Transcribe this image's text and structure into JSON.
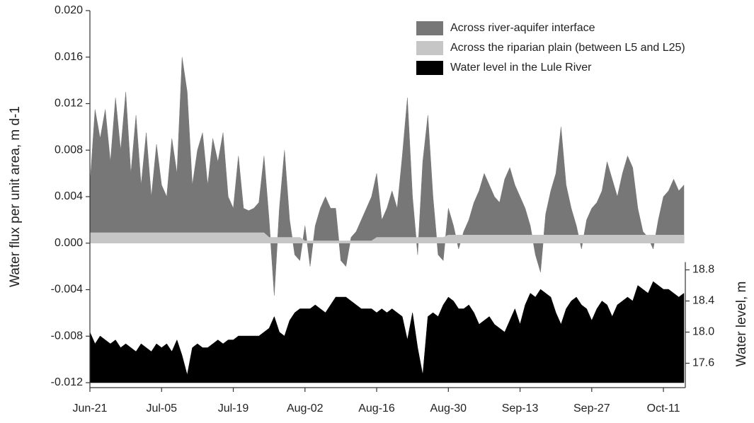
{
  "chart_data": {
    "type": "area",
    "y_label": "Water flux per unit area, m d-1",
    "y2_label": "Water level, m",
    "x": [
      "Jun-21",
      "Jun-22",
      "Jun-23",
      "Jun-24",
      "Jun-25",
      "Jun-26",
      "Jun-27",
      "Jun-28",
      "Jun-29",
      "Jun-30",
      "Jul-01",
      "Jul-02",
      "Jul-03",
      "Jul-04",
      "Jul-05",
      "Jul-06",
      "Jul-07",
      "Jul-08",
      "Jul-09",
      "Jul-10",
      "Jul-11",
      "Jul-12",
      "Jul-13",
      "Jul-14",
      "Jul-15",
      "Jul-16",
      "Jul-17",
      "Jul-18",
      "Jul-19",
      "Jul-20",
      "Jul-21",
      "Jul-22",
      "Jul-23",
      "Jul-24",
      "Jul-25",
      "Jul-26",
      "Jul-27",
      "Jul-28",
      "Jul-29",
      "Jul-30",
      "Jul-31",
      "Aug-01",
      "Aug-02",
      "Aug-03",
      "Aug-04",
      "Aug-05",
      "Aug-06",
      "Aug-07",
      "Aug-08",
      "Aug-09",
      "Aug-10",
      "Aug-11",
      "Aug-12",
      "Aug-13",
      "Aug-14",
      "Aug-15",
      "Aug-16",
      "Aug-17",
      "Aug-18",
      "Aug-19",
      "Aug-20",
      "Aug-21",
      "Aug-22",
      "Aug-23",
      "Aug-24",
      "Aug-25",
      "Aug-26",
      "Aug-27",
      "Aug-28",
      "Aug-29",
      "Aug-30",
      "Aug-31",
      "Sep-01",
      "Sep-02",
      "Sep-03",
      "Sep-04",
      "Sep-05",
      "Sep-06",
      "Sep-07",
      "Sep-08",
      "Sep-09",
      "Sep-10",
      "Sep-11",
      "Sep-12",
      "Sep-13",
      "Sep-14",
      "Sep-15",
      "Sep-16",
      "Sep-17",
      "Sep-18",
      "Sep-19",
      "Sep-20",
      "Sep-21",
      "Sep-22",
      "Sep-23",
      "Sep-24",
      "Sep-25",
      "Sep-26",
      "Sep-27",
      "Sep-28",
      "Sep-29",
      "Sep-30",
      "Oct-01",
      "Oct-02",
      "Oct-03",
      "Oct-04",
      "Oct-05",
      "Oct-06",
      "Oct-07",
      "Oct-08",
      "Oct-09",
      "Oct-10",
      "Oct-11",
      "Oct-12",
      "Oct-13",
      "Oct-14",
      "Oct-15"
    ],
    "xticks": [
      "Jun-21",
      "Jul-05",
      "Jul-19",
      "Aug-02",
      "Aug-16",
      "Aug-30",
      "Sep-13",
      "Sep-27",
      "Oct-11"
    ],
    "ylim": [
      -0.012,
      0.02
    ],
    "yticks": [
      {
        "value": 0.02,
        "label": "0.020"
      },
      0.016,
      0.012,
      0.008,
      0.004,
      {
        "value": 0,
        "label": "0.000"
      },
      -0.004,
      -0.008,
      -0.012
    ],
    "y2lim": [
      17.35,
      18.9
    ],
    "y2ticks": [
      17.6,
      {
        "value": 18,
        "label": "18.0"
      },
      18.4,
      18.8
    ],
    "legend": "top-right",
    "series": [
      {
        "name": "Across river-aquifer interface",
        "color": "#777777",
        "values": [
          0.005,
          0.0115,
          0.009,
          0.0115,
          0.007,
          0.0125,
          0.008,
          0.013,
          0.006,
          0.011,
          0.005,
          0.0095,
          0.004,
          0.0085,
          0.005,
          0.004,
          0.009,
          0.006,
          0.016,
          0.013,
          0.005,
          0.008,
          0.0095,
          0.005,
          0.009,
          0.007,
          0.0095,
          0.004,
          0.003,
          0.0075,
          0.003,
          0.0028,
          0.003,
          0.0035,
          0.0075,
          0.002,
          -0.0045,
          0.003,
          0.008,
          0.002,
          -0.001,
          -0.0015,
          0.0015,
          -0.002,
          0.0015,
          0.003,
          0.004,
          0.003,
          0.003,
          -0.0015,
          -0.002,
          0.0005,
          0.001,
          0.002,
          0.003,
          0.004,
          0.006,
          0.002,
          0.003,
          0.0045,
          0.003,
          0.0075,
          0.0125,
          0.004,
          -0.001,
          0.007,
          0.011,
          0.004,
          -0.001,
          -0.0015,
          0.003,
          0.0015,
          -0.0005,
          0.001,
          0.002,
          0.0035,
          0.0045,
          0.006,
          0.005,
          0.004,
          0.0035,
          0.0055,
          0.0065,
          0.005,
          0.004,
          0.003,
          0.0015,
          -0.001,
          -0.0025,
          0.0025,
          0.0045,
          0.006,
          0.01,
          0.005,
          0.003,
          0.0015,
          -0.0005,
          0.002,
          0.003,
          0.0035,
          0.0045,
          0.007,
          0.0055,
          0.004,
          0.006,
          0.0075,
          0.0065,
          0.003,
          0.001,
          0.0005,
          -0.0005,
          0.002,
          0.004,
          0.0045,
          0.0055,
          0.0045,
          0.005
        ]
      },
      {
        "name": "Across the riparian plain (between L5 and L25)",
        "color": "#c6c6c6",
        "values": [
          0.0009,
          0.0009,
          0.0009,
          0.0009,
          0.0009,
          0.0009,
          0.0009,
          0.0009,
          0.0009,
          0.0009,
          0.0009,
          0.0009,
          0.0009,
          0.0009,
          0.0009,
          0.0009,
          0.0009,
          0.0009,
          0.0009,
          0.0009,
          0.0009,
          0.0009,
          0.0009,
          0.0009,
          0.0009,
          0.0009,
          0.0009,
          0.0009,
          0.0009,
          0.0009,
          0.0009,
          0.0009,
          0.0009,
          0.0009,
          0.0009,
          0.0005,
          0.0005,
          0.0005,
          0.0005,
          0.0005,
          0.0005,
          0.0005,
          0.0002,
          0.0002,
          0.0002,
          0.0002,
          0.0002,
          0.0002,
          0.0002,
          0.0002,
          0.0002,
          0.0002,
          0.0002,
          0.0002,
          0.0002,
          0.0002,
          0.0005,
          0.0005,
          0.0005,
          0.0005,
          0.0005,
          0.0005,
          0.0005,
          0.0005,
          0.0005,
          0.0005,
          0.0005,
          0.0005,
          0.0005,
          0.0005,
          0.0007,
          0.0007,
          0.0007,
          0.0007,
          0.0007,
          0.0007,
          0.0007,
          0.0007,
          0.0007,
          0.0007,
          0.0007,
          0.0007,
          0.0007,
          0.0007,
          0.0007,
          0.0007,
          0.0007,
          0.0007,
          0.0007,
          0.0007,
          0.0007,
          0.0007,
          0.0007,
          0.0007,
          0.0007,
          0.0007,
          0.0007,
          0.0007,
          0.0007,
          0.0007,
          0.0007,
          0.0007,
          0.0007,
          0.0007,
          0.0007,
          0.0007,
          0.0007,
          0.0007,
          0.0007,
          0.0007,
          0.0007,
          0.0007,
          0.0007,
          0.0007,
          0.0007,
          0.0007,
          0.0007
        ]
      },
      {
        "name": "Water level in the Lule River",
        "color": "#000000",
        "axis": "y2",
        "values": [
          18.0,
          17.85,
          17.95,
          17.9,
          17.85,
          17.9,
          17.8,
          17.85,
          17.8,
          17.75,
          17.85,
          17.8,
          17.75,
          17.85,
          17.8,
          17.85,
          17.75,
          17.9,
          17.7,
          17.45,
          17.8,
          17.85,
          17.8,
          17.8,
          17.85,
          17.9,
          17.85,
          17.9,
          17.9,
          17.95,
          17.95,
          17.95,
          17.95,
          17.95,
          18.0,
          18.05,
          18.2,
          18.0,
          17.95,
          18.15,
          18.25,
          18.3,
          18.3,
          18.3,
          18.35,
          18.3,
          18.25,
          18.35,
          18.45,
          18.45,
          18.45,
          18.4,
          18.35,
          18.3,
          18.3,
          18.3,
          18.25,
          18.3,
          18.25,
          18.3,
          18.25,
          18.2,
          17.9,
          18.25,
          17.8,
          17.45,
          18.2,
          18.25,
          18.2,
          18.35,
          18.45,
          18.4,
          18.3,
          18.3,
          18.35,
          18.25,
          18.1,
          18.15,
          18.2,
          18.1,
          18.05,
          18.0,
          18.15,
          18.3,
          18.1,
          18.35,
          18.5,
          18.45,
          18.55,
          18.5,
          18.45,
          18.25,
          18.1,
          18.3,
          18.4,
          18.45,
          18.35,
          18.3,
          18.15,
          18.3,
          18.4,
          18.35,
          18.2,
          18.35,
          18.4,
          18.45,
          18.4,
          18.6,
          18.55,
          18.5,
          18.65,
          18.6,
          18.55,
          18.55,
          18.5,
          18.45,
          18.5
        ]
      }
    ]
  }
}
